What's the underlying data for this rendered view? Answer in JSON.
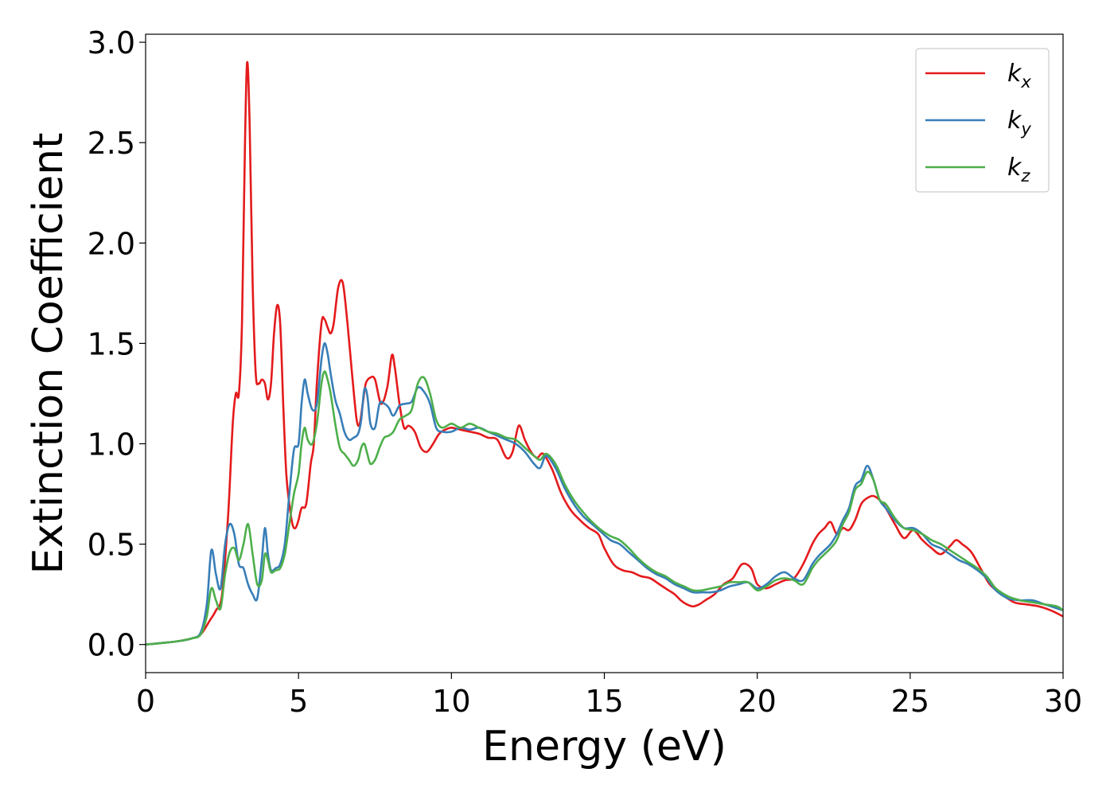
{
  "chart_data": {
    "type": "line",
    "title": "",
    "xlabel": "Energy (eV)",
    "ylabel": "Extinction Coefficient",
    "xlim": [
      0,
      30
    ],
    "ylim": [
      -0.14,
      3.04
    ],
    "xticks": [
      0,
      5,
      10,
      15,
      20,
      25,
      30
    ],
    "xtick_labels": [
      "0",
      "5",
      "10",
      "15",
      "20",
      "25",
      "30"
    ],
    "yticks": [
      0.0,
      0.5,
      1.0,
      1.5,
      2.0,
      2.5,
      3.0
    ],
    "ytick_labels": [
      "0.0",
      "0.5",
      "1.0",
      "1.5",
      "2.0",
      "2.5",
      "3.0"
    ],
    "grid": false,
    "legend_position": "top-right",
    "series": [
      {
        "name": "k_x",
        "label_base": "k",
        "label_sub": "x",
        "color": "#e41a1c",
        "x": [
          0,
          0.5,
          1,
          1.5,
          1.8,
          2.1,
          2.3,
          2.5,
          2.7,
          2.85,
          2.95,
          3.05,
          3.15,
          3.25,
          3.32,
          3.4,
          3.5,
          3.6,
          3.7,
          3.8,
          3.9,
          4.0,
          4.1,
          4.2,
          4.3,
          4.4,
          4.5,
          4.6,
          4.7,
          4.8,
          4.9,
          5.0,
          5.1,
          5.25,
          5.4,
          5.5,
          5.6,
          5.75,
          5.85,
          5.95,
          6.05,
          6.15,
          6.3,
          6.45,
          6.6,
          6.75,
          6.9,
          7.0,
          7.1,
          7.2,
          7.35,
          7.5,
          7.7,
          7.9,
          8.05,
          8.15,
          8.3,
          8.45,
          8.6,
          8.8,
          9.0,
          9.2,
          9.4,
          9.6,
          9.8,
          10.0,
          10.3,
          10.6,
          10.9,
          11.2,
          11.5,
          11.8,
          12.0,
          12.2,
          12.4,
          12.6,
          12.8,
          13.0,
          13.3,
          13.6,
          13.9,
          14.2,
          14.5,
          14.8,
          15.0,
          15.3,
          15.6,
          15.9,
          16.2,
          16.5,
          16.8,
          17.1,
          17.3,
          17.5,
          17.7,
          17.9,
          18.1,
          18.3,
          18.6,
          18.9,
          19.2,
          19.5,
          19.8,
          20.0,
          20.3,
          20.6,
          20.9,
          21.2,
          21.5,
          21.8,
          22.0,
          22.2,
          22.4,
          22.6,
          22.8,
          23.0,
          23.2,
          23.4,
          23.6,
          23.8,
          24.0,
          24.2,
          24.5,
          24.8,
          25.1,
          25.4,
          25.7,
          26.0,
          26.3,
          26.5,
          26.7,
          27.0,
          27.3,
          27.6,
          28.0,
          28.4,
          28.8,
          29.2,
          29.6,
          30.0
        ],
        "y": [
          0,
          0.007,
          0.015,
          0.03,
          0.05,
          0.12,
          0.17,
          0.25,
          0.65,
          1.1,
          1.25,
          1.25,
          1.6,
          2.5,
          2.9,
          2.6,
          1.8,
          1.35,
          1.3,
          1.32,
          1.3,
          1.22,
          1.3,
          1.55,
          1.69,
          1.6,
          1.2,
          0.85,
          0.7,
          0.6,
          0.58,
          0.62,
          0.68,
          0.7,
          0.9,
          1.0,
          1.3,
          1.6,
          1.62,
          1.58,
          1.55,
          1.6,
          1.78,
          1.8,
          1.6,
          1.35,
          1.12,
          1.1,
          1.2,
          1.3,
          1.33,
          1.32,
          1.2,
          1.28,
          1.44,
          1.38,
          1.2,
          1.08,
          1.09,
          1.06,
          0.98,
          0.96,
          1.0,
          1.05,
          1.07,
          1.08,
          1.07,
          1.06,
          1.05,
          1.03,
          1.02,
          0.93,
          0.96,
          1.09,
          1.02,
          0.96,
          0.93,
          0.95,
          0.87,
          0.75,
          0.67,
          0.62,
          0.58,
          0.55,
          0.48,
          0.4,
          0.37,
          0.36,
          0.34,
          0.33,
          0.3,
          0.27,
          0.25,
          0.22,
          0.2,
          0.19,
          0.2,
          0.22,
          0.25,
          0.3,
          0.33,
          0.4,
          0.38,
          0.3,
          0.28,
          0.3,
          0.32,
          0.33,
          0.4,
          0.5,
          0.55,
          0.58,
          0.61,
          0.55,
          0.58,
          0.57,
          0.62,
          0.7,
          0.73,
          0.74,
          0.72,
          0.68,
          0.6,
          0.53,
          0.57,
          0.52,
          0.48,
          0.45,
          0.49,
          0.52,
          0.5,
          0.46,
          0.38,
          0.3,
          0.25,
          0.21,
          0.2,
          0.19,
          0.17,
          0.14
        ]
      },
      {
        "name": "k_y",
        "label_base": "k",
        "label_sub": "y",
        "color": "#377eb8",
        "x": [
          0,
          0.5,
          1,
          1.5,
          1.8,
          2.0,
          2.15,
          2.3,
          2.45,
          2.6,
          2.75,
          2.9,
          3.05,
          3.2,
          3.35,
          3.5,
          3.65,
          3.8,
          3.9,
          4.0,
          4.1,
          4.25,
          4.4,
          4.55,
          4.7,
          4.85,
          5.0,
          5.1,
          5.2,
          5.3,
          5.45,
          5.6,
          5.75,
          5.85,
          5.95,
          6.05,
          6.2,
          6.35,
          6.5,
          6.65,
          6.8,
          6.95,
          7.05,
          7.15,
          7.25,
          7.35,
          7.5,
          7.65,
          7.8,
          7.95,
          8.1,
          8.3,
          8.5,
          8.7,
          8.9,
          9.1,
          9.3,
          9.5,
          9.7,
          10.0,
          10.3,
          10.6,
          10.9,
          11.2,
          11.5,
          11.8,
          12.1,
          12.4,
          12.7,
          12.9,
          13.1,
          13.4,
          13.7,
          14.0,
          14.3,
          14.6,
          14.9,
          15.2,
          15.5,
          15.8,
          16.1,
          16.4,
          16.7,
          17.0,
          17.3,
          17.6,
          17.9,
          18.2,
          18.5,
          18.8,
          19.1,
          19.4,
          19.7,
          20.0,
          20.3,
          20.6,
          20.9,
          21.2,
          21.5,
          21.8,
          22.0,
          22.2,
          22.4,
          22.6,
          22.8,
          23.0,
          23.2,
          23.4,
          23.6,
          23.8,
          24.0,
          24.2,
          24.5,
          24.8,
          25.1,
          25.4,
          25.7,
          26.0,
          26.3,
          26.6,
          26.9,
          27.2,
          27.5,
          27.8,
          28.2,
          28.6,
          29.0,
          29.4,
          29.8,
          30.0
        ],
        "y": [
          0,
          0.007,
          0.015,
          0.03,
          0.06,
          0.2,
          0.47,
          0.35,
          0.28,
          0.5,
          0.6,
          0.55,
          0.4,
          0.38,
          0.3,
          0.25,
          0.23,
          0.42,
          0.58,
          0.45,
          0.37,
          0.38,
          0.4,
          0.5,
          0.75,
          0.97,
          1.0,
          1.2,
          1.32,
          1.25,
          1.17,
          1.2,
          1.42,
          1.5,
          1.45,
          1.35,
          1.22,
          1.15,
          1.06,
          1.02,
          1.03,
          1.05,
          1.12,
          1.27,
          1.24,
          1.1,
          1.08,
          1.2,
          1.2,
          1.18,
          1.14,
          1.19,
          1.2,
          1.21,
          1.28,
          1.26,
          1.2,
          1.08,
          1.06,
          1.06,
          1.08,
          1.07,
          1.08,
          1.06,
          1.04,
          1.02,
          1.0,
          0.96,
          0.9,
          0.88,
          0.94,
          0.88,
          0.78,
          0.7,
          0.64,
          0.6,
          0.56,
          0.52,
          0.5,
          0.46,
          0.42,
          0.38,
          0.35,
          0.33,
          0.3,
          0.28,
          0.26,
          0.26,
          0.26,
          0.27,
          0.29,
          0.3,
          0.31,
          0.28,
          0.3,
          0.34,
          0.36,
          0.33,
          0.32,
          0.4,
          0.44,
          0.47,
          0.5,
          0.55,
          0.62,
          0.68,
          0.79,
          0.82,
          0.89,
          0.82,
          0.72,
          0.68,
          0.62,
          0.58,
          0.58,
          0.55,
          0.5,
          0.48,
          0.45,
          0.42,
          0.4,
          0.37,
          0.33,
          0.27,
          0.23,
          0.22,
          0.22,
          0.2,
          0.18,
          0.17
        ]
      },
      {
        "name": "k_z",
        "label_base": "k",
        "label_sub": "z",
        "color": "#4daf4a",
        "x": [
          0,
          0.5,
          1,
          1.5,
          1.8,
          2.0,
          2.15,
          2.3,
          2.45,
          2.6,
          2.75,
          2.9,
          3.05,
          3.2,
          3.35,
          3.5,
          3.65,
          3.8,
          3.9,
          4.0,
          4.1,
          4.25,
          4.4,
          4.55,
          4.7,
          4.85,
          5.0,
          5.1,
          5.2,
          5.3,
          5.45,
          5.6,
          5.75,
          5.85,
          5.95,
          6.05,
          6.2,
          6.35,
          6.5,
          6.65,
          6.8,
          6.95,
          7.05,
          7.15,
          7.25,
          7.35,
          7.5,
          7.65,
          7.8,
          7.95,
          8.1,
          8.3,
          8.5,
          8.7,
          8.9,
          9.1,
          9.3,
          9.5,
          9.7,
          10.0,
          10.3,
          10.6,
          10.9,
          11.2,
          11.5,
          11.8,
          12.1,
          12.4,
          12.7,
          12.9,
          13.1,
          13.4,
          13.7,
          14.0,
          14.3,
          14.6,
          14.9,
          15.2,
          15.5,
          15.8,
          16.1,
          16.4,
          16.7,
          17.0,
          17.3,
          17.6,
          17.9,
          18.2,
          18.5,
          18.8,
          19.1,
          19.4,
          19.7,
          20.0,
          20.3,
          20.6,
          20.9,
          21.2,
          21.5,
          21.8,
          22.0,
          22.2,
          22.4,
          22.6,
          22.8,
          23.0,
          23.2,
          23.4,
          23.6,
          23.8,
          24.0,
          24.2,
          24.5,
          24.8,
          25.1,
          25.4,
          25.7,
          26.0,
          26.3,
          26.6,
          26.9,
          27.2,
          27.5,
          27.8,
          28.2,
          28.6,
          29.0,
          29.4,
          29.8,
          30.0
        ],
        "y": [
          0,
          0.007,
          0.015,
          0.03,
          0.05,
          0.14,
          0.28,
          0.22,
          0.18,
          0.35,
          0.46,
          0.48,
          0.42,
          0.5,
          0.6,
          0.45,
          0.3,
          0.32,
          0.45,
          0.42,
          0.36,
          0.37,
          0.38,
          0.45,
          0.6,
          0.75,
          0.85,
          1.0,
          1.08,
          1.02,
          1.0,
          1.1,
          1.3,
          1.36,
          1.32,
          1.25,
          1.1,
          0.98,
          0.95,
          0.92,
          0.89,
          0.92,
          0.98,
          1.0,
          0.95,
          0.9,
          0.92,
          0.98,
          1.03,
          1.04,
          1.06,
          1.12,
          1.14,
          1.17,
          1.3,
          1.33,
          1.25,
          1.12,
          1.08,
          1.1,
          1.08,
          1.1,
          1.08,
          1.06,
          1.05,
          1.03,
          1.02,
          0.98,
          0.94,
          0.92,
          0.95,
          0.9,
          0.8,
          0.72,
          0.66,
          0.61,
          0.57,
          0.54,
          0.52,
          0.48,
          0.43,
          0.39,
          0.36,
          0.34,
          0.31,
          0.29,
          0.27,
          0.27,
          0.28,
          0.29,
          0.31,
          0.31,
          0.31,
          0.27,
          0.29,
          0.32,
          0.33,
          0.32,
          0.3,
          0.38,
          0.42,
          0.45,
          0.48,
          0.52,
          0.6,
          0.66,
          0.77,
          0.8,
          0.86,
          0.82,
          0.72,
          0.7,
          0.63,
          0.58,
          0.57,
          0.55,
          0.52,
          0.5,
          0.47,
          0.44,
          0.41,
          0.38,
          0.34,
          0.28,
          0.24,
          0.22,
          0.21,
          0.2,
          0.19,
          0.17
        ]
      }
    ]
  }
}
